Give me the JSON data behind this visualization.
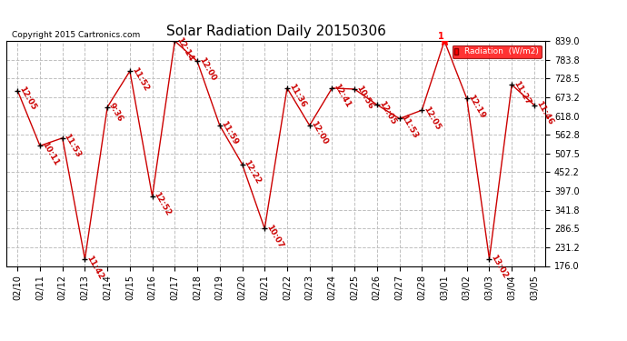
{
  "title": "Solar Radiation Daily 20150306",
  "copyright": "Copyright 2015 Cartronics.com",
  "legend_label": "Radiation  (W/m2)",
  "background_color": "#ffffff",
  "plot_bg_color": "#ffffff",
  "line_color": "#cc0000",
  "marker_color": "#000000",
  "grid_color": "#c0c0c0",
  "ylim": [
    176.0,
    839.0
  ],
  "yticks": [
    176.0,
    231.2,
    286.5,
    341.8,
    397.0,
    452.2,
    507.5,
    562.8,
    618.0,
    673.2,
    728.5,
    783.8,
    839.0
  ],
  "dates": [
    "02/10",
    "02/11",
    "02/12",
    "02/13",
    "02/14",
    "02/15",
    "02/16",
    "02/17",
    "02/18",
    "02/19",
    "02/20",
    "02/21",
    "02/22",
    "02/23",
    "02/24",
    "02/25",
    "02/26",
    "02/27",
    "02/28",
    "03/01",
    "03/02",
    "03/03",
    "03/04",
    "03/05"
  ],
  "values": [
    693,
    530,
    553,
    196,
    644,
    750,
    381,
    839,
    779,
    590,
    476,
    286,
    700,
    590,
    700,
    697,
    651,
    610,
    635,
    839,
    669,
    197,
    710,
    650
  ],
  "time_labels": [
    "12:05",
    "10:11",
    "11:53",
    "11:42",
    "9:36",
    "11:52",
    "12:52",
    "12:14",
    "12:00",
    "11:59",
    "12:22",
    "10:07",
    "11:36",
    "12:00",
    "12:41",
    "10:56",
    "12:05",
    "11:53",
    "12:05",
    "1",
    "12:19",
    "13:02",
    "11:27",
    "11:46"
  ],
  "highlight_index": 19,
  "title_fontsize": 11,
  "tick_fontsize": 7,
  "label_fontsize": 6.5
}
